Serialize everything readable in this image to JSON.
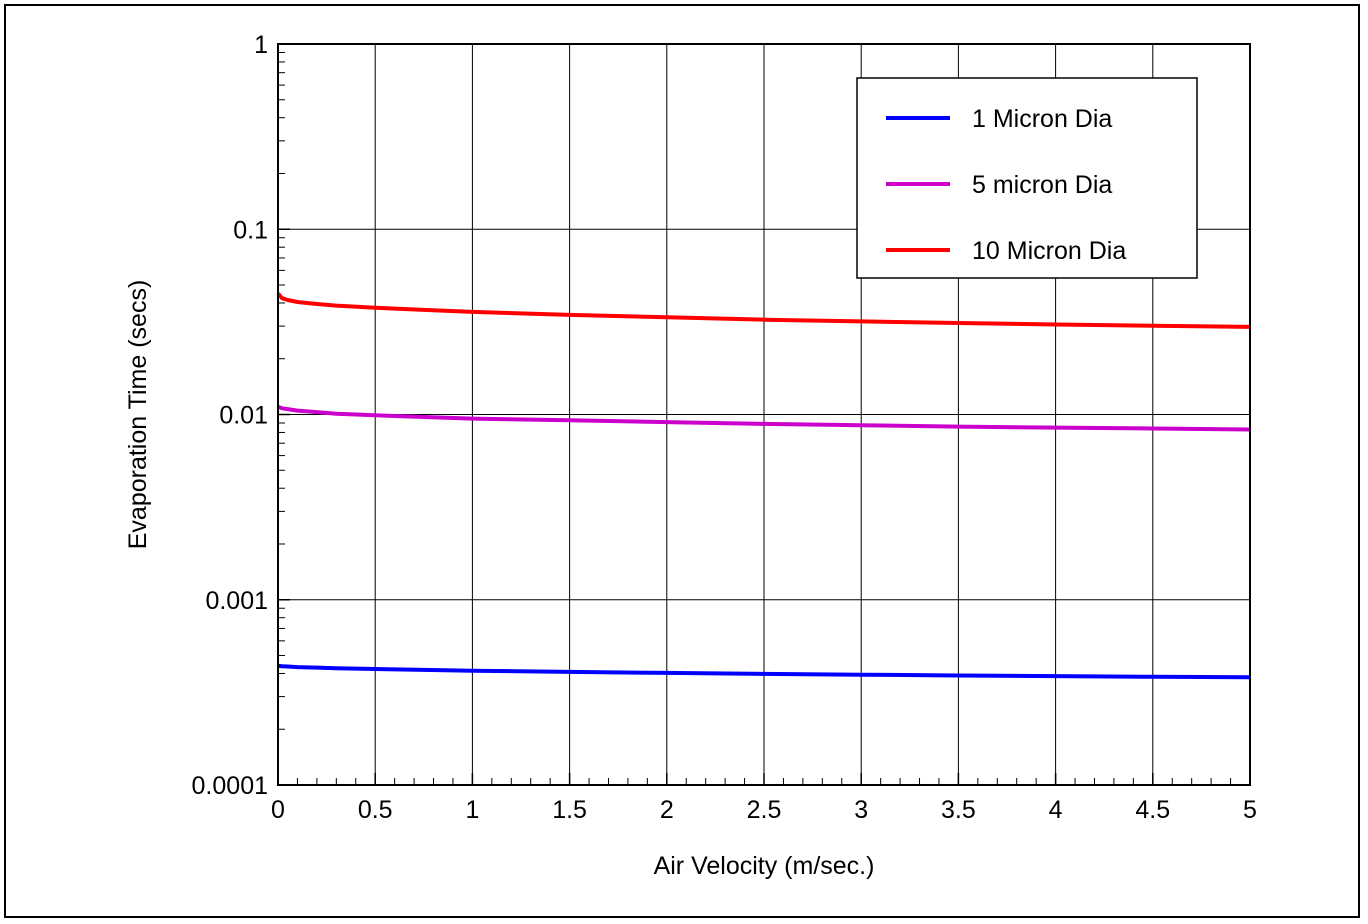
{
  "chart_data": {
    "type": "line",
    "xlabel": "Air Velocity (m/sec.)",
    "ylabel": "Evaporation Time (secs)",
    "xlim": [
      0,
      5
    ],
    "ylim": [
      0.0001,
      1
    ],
    "y_scale": "log",
    "grid": true,
    "legend_position": "top-right",
    "x_ticks": [
      "0",
      "0.5",
      "1",
      "1.5",
      "2",
      "2.5",
      "3",
      "3.5",
      "4",
      "4.5",
      "5"
    ],
    "y_ticks": [
      "0.0001",
      "0.001",
      "0.01",
      "0.1",
      "1"
    ],
    "x": [
      0,
      0.02,
      0.05,
      0.1,
      0.2,
      0.3,
      0.5,
      0.75,
      1,
      1.5,
      2,
      2.5,
      3,
      3.5,
      4,
      4.5,
      5
    ],
    "series": [
      {
        "name": "1 Micron Dia",
        "color": "#0000ff",
        "values": [
          0.00044,
          0.000438,
          0.000436,
          0.000433,
          0.00043,
          0.000427,
          0.000423,
          0.000418,
          0.000414,
          0.000408,
          0.000403,
          0.000398,
          0.000394,
          0.00039,
          0.000387,
          0.000384,
          0.000382
        ]
      },
      {
        "name": "5 micron Dia",
        "color": "#cc00cc",
        "values": [
          0.011,
          0.0108,
          0.0107,
          0.0105,
          0.0103,
          0.0101,
          0.0099,
          0.0097,
          0.0095,
          0.0093,
          0.0091,
          0.0089,
          0.00875,
          0.0086,
          0.0085,
          0.0084,
          0.0083
        ]
      },
      {
        "name": "10 Micron Dia",
        "color": "#ff0000",
        "values": [
          0.045,
          0.0425,
          0.0415,
          0.0405,
          0.0395,
          0.0387,
          0.0377,
          0.0367,
          0.0358,
          0.0345,
          0.0335,
          0.0325,
          0.0318,
          0.0312,
          0.0306,
          0.0301,
          0.0297
        ]
      }
    ]
  }
}
